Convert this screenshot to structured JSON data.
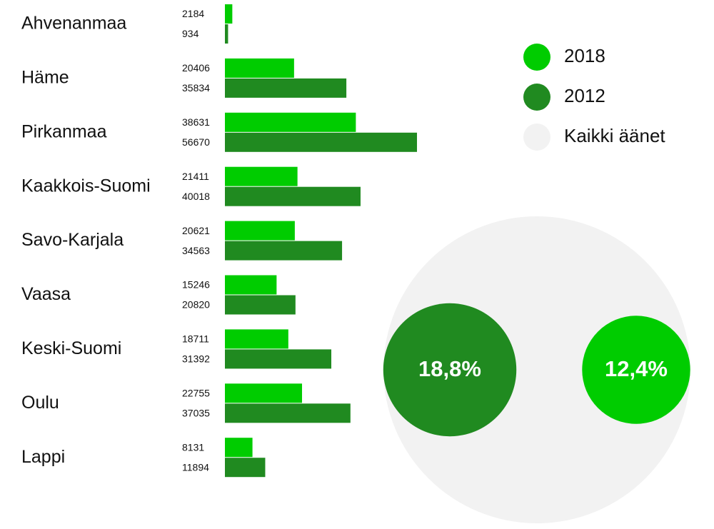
{
  "chart_data": [
    {
      "type": "bar",
      "orientation": "horizontal",
      "categories": [
        "Ahvenanmaa",
        "Häme",
        "Pirkanmaa",
        "Kaakkois-Suomi",
        "Savo-Karjala",
        "Vaasa",
        "Keski-Suomi",
        "Oulu",
        "Lappi"
      ],
      "series": [
        {
          "name": "2018",
          "color": "#00cc00",
          "values": [
            2184,
            20406,
            38631,
            21411,
            20621,
            15246,
            18711,
            22755,
            8131
          ]
        },
        {
          "name": "2012",
          "color": "#208a20",
          "values": [
            934,
            35834,
            56670,
            40018,
            34563,
            20820,
            31392,
            37035,
            11894
          ]
        }
      ]
    },
    {
      "type": "bubble",
      "background": {
        "name": "Kaikki äänet",
        "color": "#f2f2f2"
      },
      "values": [
        18.8,
        12.4
      ],
      "value_labels": [
        "18,8%",
        "12,4%"
      ],
      "colors": [
        "#208a20",
        "#00cc00"
      ]
    }
  ]
}
